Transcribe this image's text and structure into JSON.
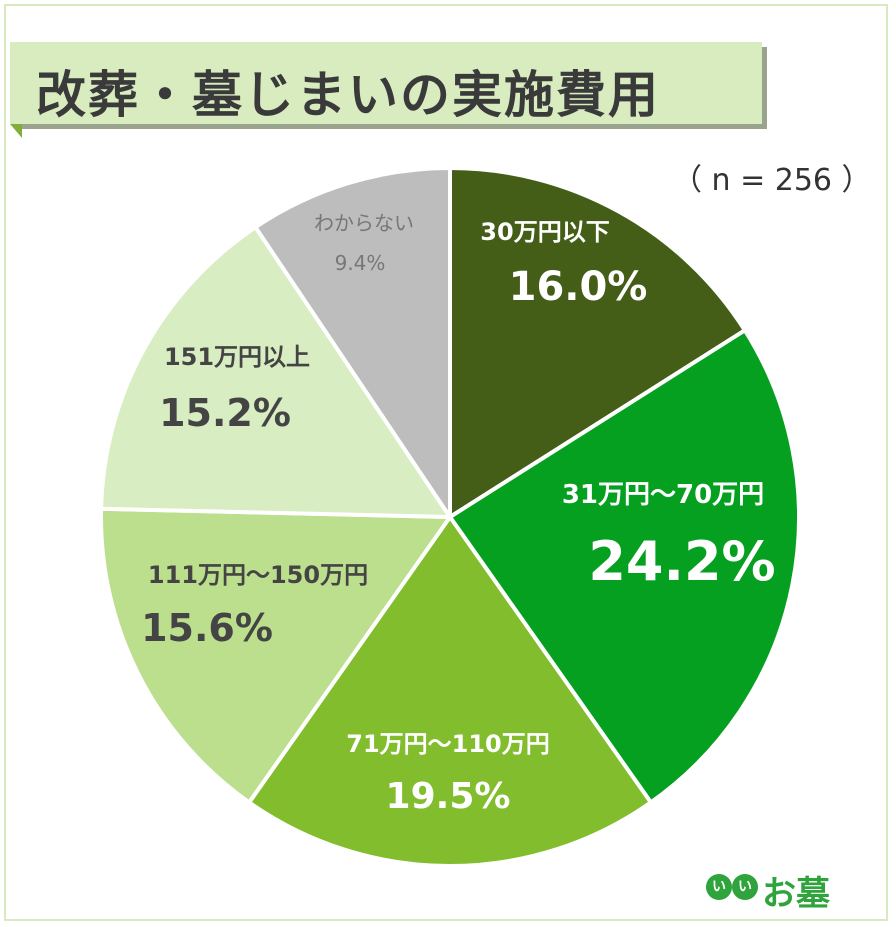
{
  "title": "改葬・墓じまいの実施費用",
  "sample_size": "（ n = 256 ）",
  "logo": {
    "badge": "いい",
    "badge_1": "い",
    "badge_2": "い",
    "text": "お墓"
  },
  "chart_data": {
    "type": "pie",
    "title": "改葬・墓じまいの実施費用",
    "slices": [
      {
        "label": "30万円以下",
        "value": 16.0,
        "value_label": "16.0%",
        "color": "#445e18"
      },
      {
        "label": "31万円～70万円",
        "value": 24.2,
        "value_label": "24.2%",
        "color": "#06a020"
      },
      {
        "label": "71万円～110万円",
        "value": 19.5,
        "value_label": "19.5%",
        "color": "#82bd2e"
      },
      {
        "label": "111万円～150万円",
        "value": 15.6,
        "value_label": "15.6%",
        "color": "#bcdf8e"
      },
      {
        "label": "151万円以上",
        "value": 15.2,
        "value_label": "15.2%",
        "color": "#d9edc2"
      },
      {
        "label": "わからない",
        "value": 9.4,
        "value_label": "9.4%",
        "color": "#bdbdbd"
      }
    ]
  }
}
